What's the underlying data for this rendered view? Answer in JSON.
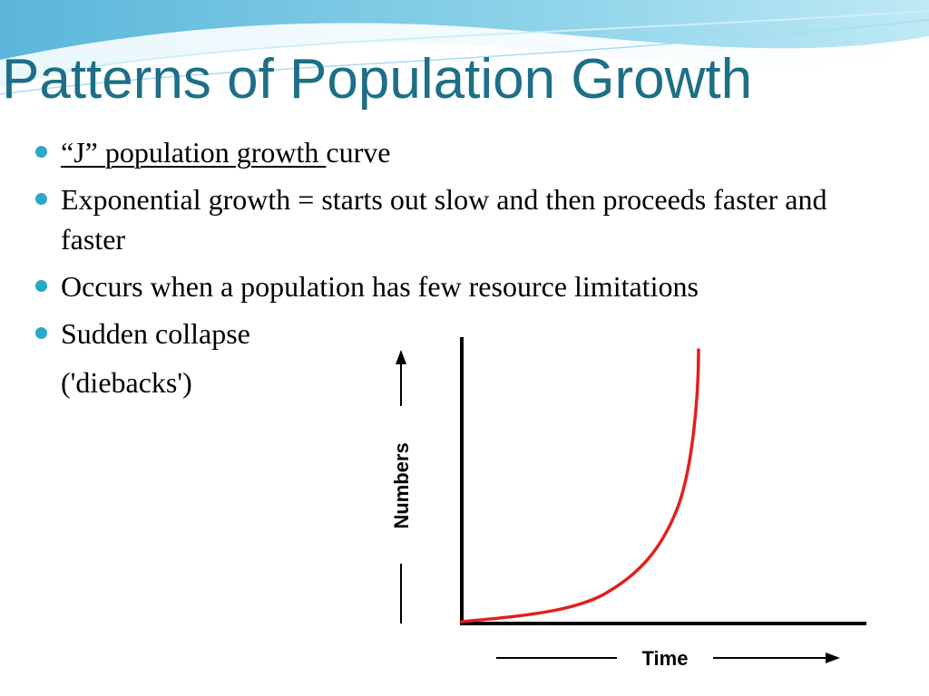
{
  "slide": {
    "title": "Patterns of Population Growth",
    "accent_color": "#1c6f86",
    "bullet_color": "#2aa7c9"
  },
  "bullets": [
    {
      "underlined": "“J” population growth ",
      "rest": "curve"
    },
    {
      "text": "Exponential growth = starts out slow and then proceeds faster and faster"
    },
    {
      "text": "Occurs when a population has few resource limitations"
    },
    {
      "text": "Sudden collapse"
    }
  ],
  "continuation_text": "('diebacks')",
  "graph": {
    "y_axis_label": "Numbers",
    "x_axis_label": "Time",
    "curve_color": "#e02020",
    "curve_shape": "exponential J-curve"
  }
}
